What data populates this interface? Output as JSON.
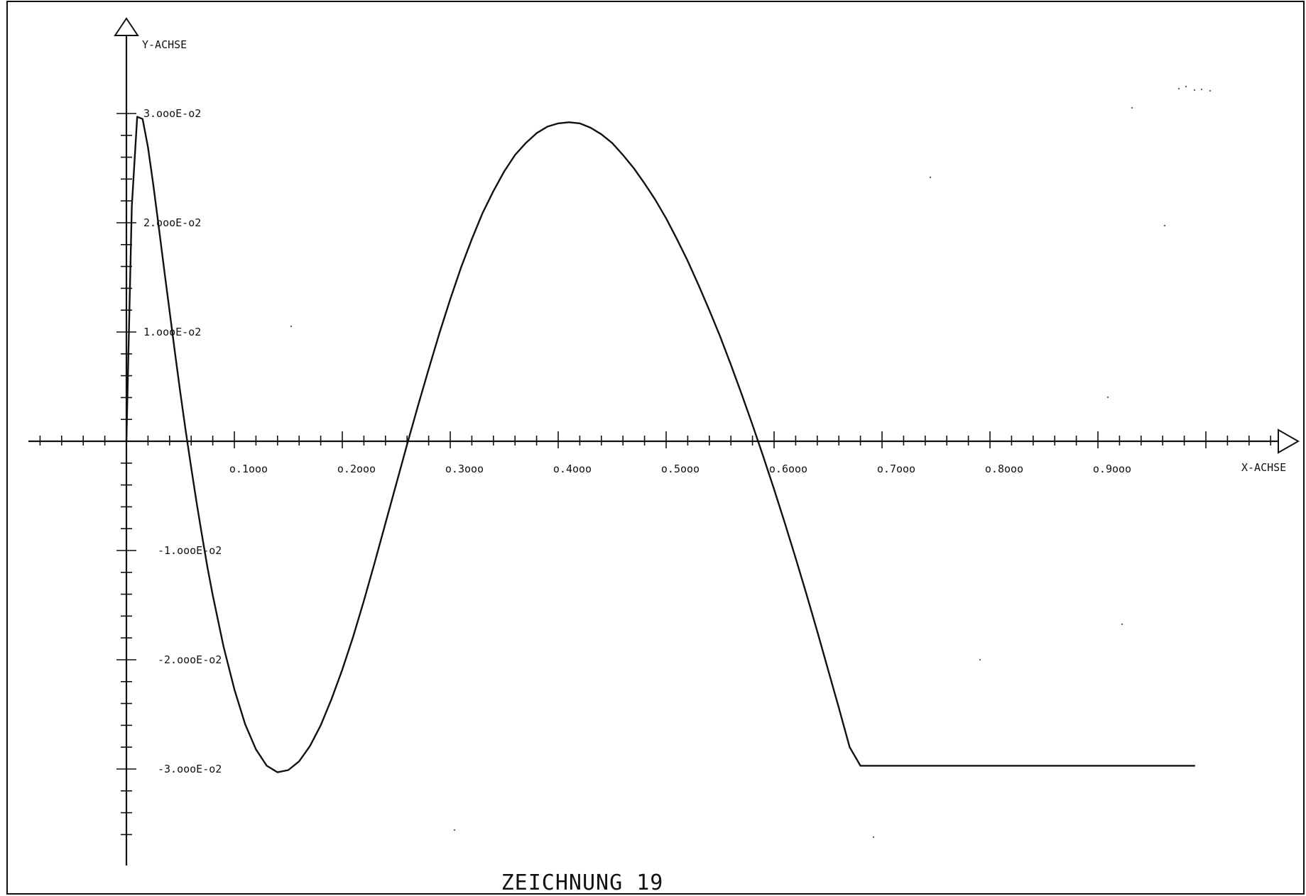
{
  "chart_data": {
    "type": "line",
    "title": "ZEICHNUNG 19",
    "xlabel": "X-ACHSE",
    "ylabel": "Y-ACHSE",
    "xlim": [
      0,
      1.0
    ],
    "ylim": [
      -0.038,
      0.03
    ],
    "grid": false,
    "x_tick_values": [
      0.1,
      0.2,
      0.3,
      0.4,
      0.5,
      0.6,
      0.7,
      0.8,
      0.9
    ],
    "x_tick_labels": [
      "o.1ooo",
      "o.2ooo",
      "o.3ooo",
      "o.4ooo",
      "o.5ooo",
      "o.6ooo",
      "o.7ooo",
      "o.8ooo",
      "o.9ooo"
    ],
    "y_tick_values": [
      0.03,
      0.02,
      0.01,
      -0.01,
      -0.02,
      -0.03
    ],
    "y_tick_labels": [
      "3.oooE-o2",
      "2.oooE-o2",
      "1.oooE-o2",
      "-1.oooE-o2",
      "-2.oooE-o2",
      "-3.oooE-o2"
    ],
    "series": [
      {
        "x": [
          0.0,
          0.005,
          0.01,
          0.015,
          0.02,
          0.025,
          0.03,
          0.035,
          0.04,
          0.045,
          0.05,
          0.055,
          0.06,
          0.065,
          0.07,
          0.075,
          0.08,
          0.09,
          0.1,
          0.11,
          0.12,
          0.13,
          0.14,
          0.15,
          0.16,
          0.17,
          0.18,
          0.19,
          0.2,
          0.21,
          0.22,
          0.23,
          0.24,
          0.25,
          0.26,
          0.27,
          0.28,
          0.29,
          0.3,
          0.31,
          0.32,
          0.33,
          0.34,
          0.35,
          0.36,
          0.37,
          0.38,
          0.39,
          0.4,
          0.41,
          0.42,
          0.43,
          0.44,
          0.45,
          0.46,
          0.47,
          0.48,
          0.49,
          0.5,
          0.51,
          0.52,
          0.53,
          0.54,
          0.55,
          0.56,
          0.57,
          0.58,
          0.59,
          0.6,
          0.61,
          0.62,
          0.63,
          0.64,
          0.65,
          0.66,
          0.67,
          0.68,
          0.69,
          0.7,
          0.71,
          0.72,
          0.73,
          0.74,
          0.75,
          0.76,
          0.77,
          0.78,
          0.79,
          0.8,
          0.81,
          0.82,
          0.83,
          0.84,
          0.85,
          0.86,
          0.87,
          0.88,
          0.89,
          0.9,
          0.91,
          0.92,
          0.93,
          0.94,
          0.95,
          0.96,
          0.97,
          0.98,
          0.99,
          1.0
        ],
        "y": [
          0.0,
          0.0215,
          0.0297,
          0.0295,
          0.0269,
          0.0234,
          0.0196,
          0.0157,
          0.0119,
          0.0081,
          0.0044,
          0.0009,
          -0.0024,
          -0.0056,
          -0.0086,
          -0.0115,
          -0.0141,
          -0.0188,
          -0.0227,
          -0.0259,
          -0.0282,
          -0.0297,
          -0.0303,
          -0.0301,
          -0.0293,
          -0.0279,
          -0.026,
          -0.0236,
          -0.0209,
          -0.0179,
          -0.0146,
          -0.0111,
          -0.0075,
          -0.0039,
          -0.0003,
          0.0032,
          0.0066,
          0.0099,
          0.013,
          0.0159,
          0.0185,
          0.0209,
          0.0229,
          0.0247,
          0.0262,
          0.0273,
          0.0282,
          0.0288,
          0.0291,
          0.0292,
          0.0291,
          0.0287,
          0.0281,
          0.0273,
          0.0262,
          0.025,
          0.0236,
          0.0221,
          0.0204,
          0.0185,
          0.0165,
          0.0143,
          0.012,
          0.0096,
          0.007,
          0.0043,
          0.0015,
          -0.0014,
          -0.0044,
          -0.0075,
          -0.0107,
          -0.014,
          -0.0174,
          -0.0209,
          -0.0244,
          -0.028,
          -0.0297,
          -0.0297,
          -0.0297,
          -0.0297,
          -0.0297,
          -0.0297,
          -0.0297,
          -0.0297,
          -0.0297,
          -0.0297,
          -0.0297,
          -0.0297,
          -0.0297,
          -0.0297,
          -0.0297,
          -0.0297,
          -0.0297,
          -0.0297,
          -0.0297,
          -0.0297,
          -0.0297,
          -0.0297,
          -0.0297,
          -0.0297,
          -0.0297,
          -0.0297,
          -0.0297,
          -0.0297,
          -0.0297,
          -0.0297,
          -0.0297,
          -0.0297,
          -0.0297
        ]
      }
    ]
  }
}
